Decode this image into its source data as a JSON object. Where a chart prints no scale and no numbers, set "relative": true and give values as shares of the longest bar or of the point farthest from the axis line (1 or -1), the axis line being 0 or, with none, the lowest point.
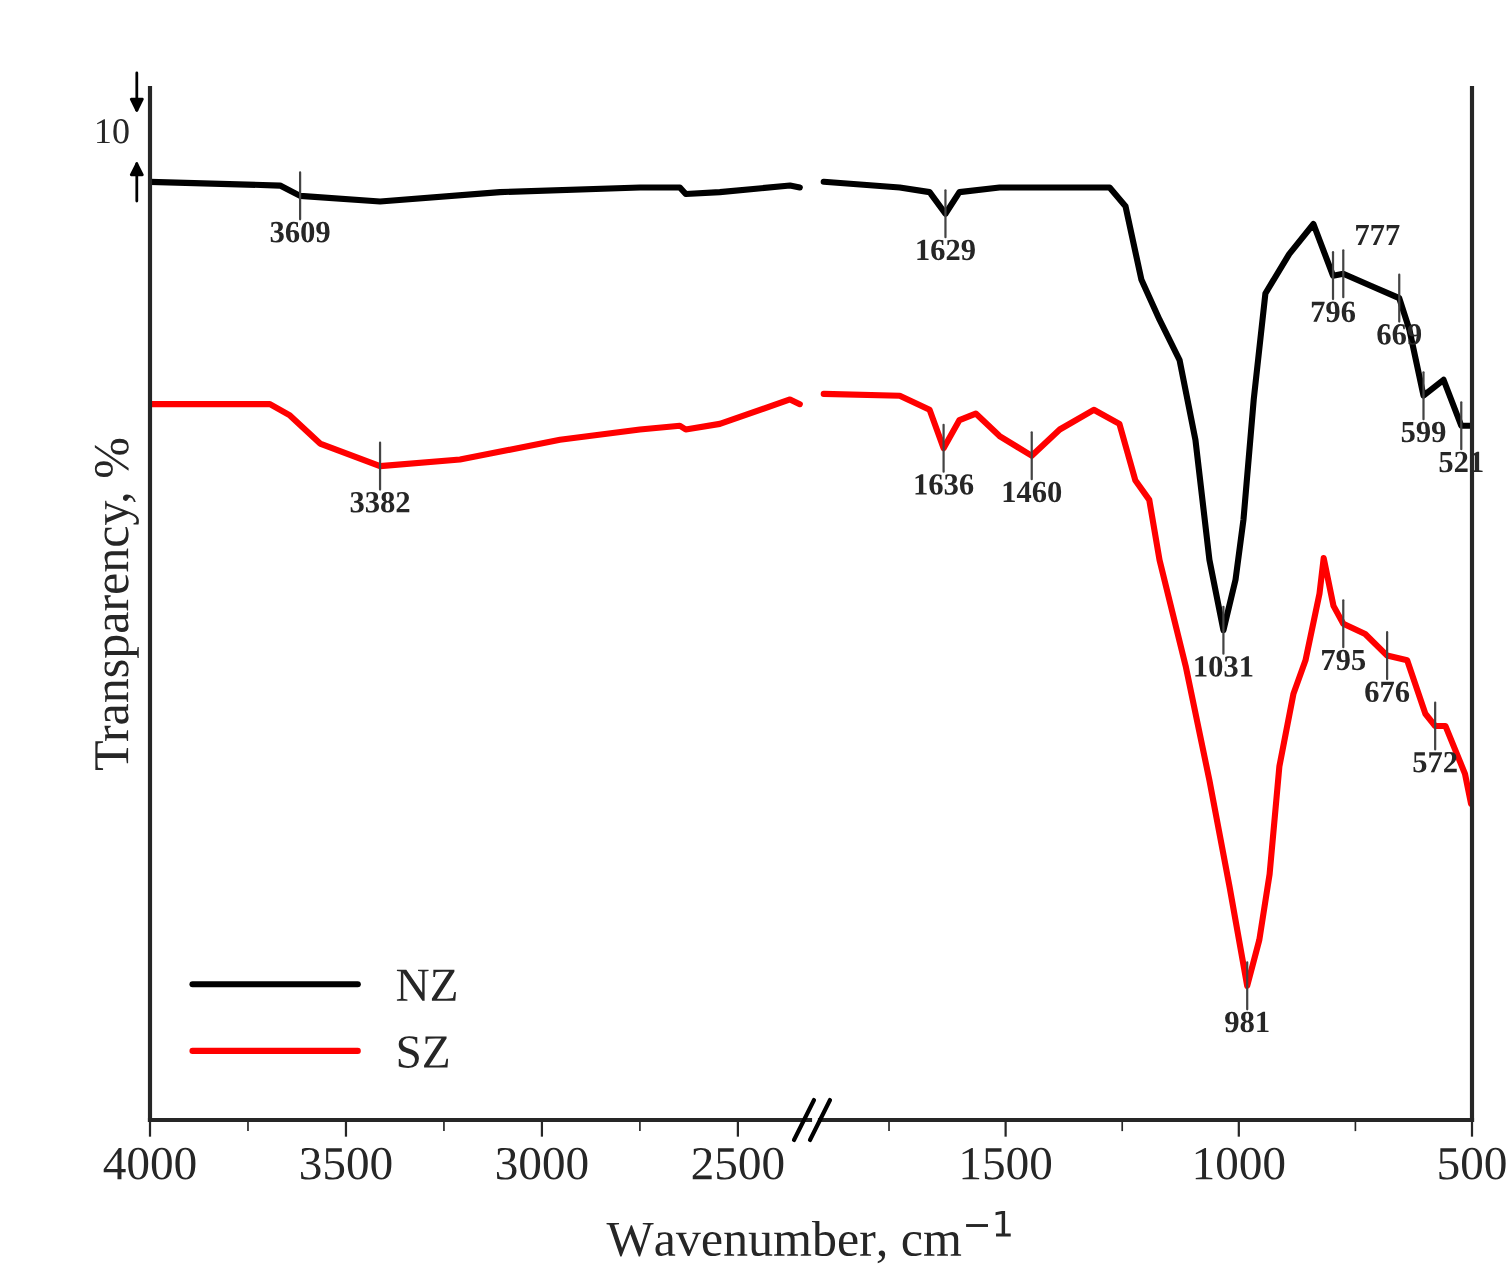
{
  "chart_data": [
    {
      "type": "line",
      "relative": true,
      "ylabel": "Transparency, %",
      "xlabel": "Wavenumber, cm$^{−1}$",
      "xlim": [
        4000,
        2316
      ],
      "xticks": [
        4000,
        3500,
        3000,
        2500
      ],
      "legend": "bottom left",
      "tick_labels": "x",
      "series": [
        {
          "name": "NZ",
          "color": "#000000",
          "x": [
            4000,
            3668,
            3617,
            3413,
            3107,
            2750,
            2648,
            2633,
            2546,
            2367,
            2342
          ],
          "values": [
            1.0,
            0.996,
            0.985,
            0.979,
            0.989,
            0.994,
            0.994,
            0.987,
            0.989,
            0.996,
            0.994
          ]
        },
        {
          "name": "SZ",
          "color": "#ff0000",
          "x": [
            4000,
            3694,
            3643,
            3566,
            3413,
            3209,
            2954,
            2750,
            2648,
            2633,
            2546,
            2367,
            2342
          ],
          "values": [
            0.763,
            0.763,
            0.751,
            0.721,
            0.697,
            0.704,
            0.725,
            0.736,
            0.74,
            0.736,
            0.742,
            0.768,
            0.763
          ]
        }
      ],
      "annotations": [
        "10",
        {
          "text": "3609",
          "x": 3617,
          "y": 0.985
        },
        {
          "text": "3382",
          "x": 3413,
          "y": 0.697
        }
      ]
    },
    {
      "type": "line",
      "relative": true,
      "xlim": [
        1898,
        500
      ],
      "xticks": [
        1500,
        1000,
        500
      ],
      "tick_labels": "x",
      "series": [
        {
          "color": "#000000",
          "x": [
            1890,
            1727,
            1663,
            1629,
            1599,
            1513,
            1277,
            1243,
            1209,
            1170,
            1127,
            1093,
            1063,
            1033,
            1007,
            990,
            968,
            943,
            892,
            840,
            798,
            776,
            716,
            656,
            634,
            604,
            561,
            523,
            502
          ],
          "values": [
            1.0,
            0.994,
            0.989,
            0.966,
            0.989,
            0.994,
            0.994,
            0.974,
            0.896,
            0.853,
            0.81,
            0.725,
            0.597,
            0.522,
            0.576,
            0.64,
            0.768,
            0.881,
            0.923,
            0.955,
            0.9,
            0.902,
            0.889,
            0.876,
            0.842,
            0.772,
            0.789,
            0.74,
            0.74
          ]
        },
        {
          "color": "#ff0000",
          "x": [
            1890,
            1727,
            1663,
            1633,
            1599,
            1564,
            1513,
            1444,
            1384,
            1311,
            1256,
            1222,
            1192,
            1170,
            1114,
            1063,
            1020,
            982,
            956,
            934,
            913,
            883,
            857,
            827,
            818,
            797,
            776,
            729,
            682,
            639,
            600,
            579,
            557,
            515,
            502
          ],
          "values": [
            0.774,
            0.772,
            0.757,
            0.716,
            0.746,
            0.753,
            0.729,
            0.708,
            0.736,
            0.757,
            0.742,
            0.682,
            0.661,
            0.597,
            0.484,
            0.362,
            0.249,
            0.143,
            0.192,
            0.262,
            0.377,
            0.454,
            0.49,
            0.561,
            0.599,
            0.548,
            0.529,
            0.518,
            0.495,
            0.49,
            0.433,
            0.42,
            0.42,
            0.369,
            0.337
          ]
        }
      ],
      "annotations": [
        {
          "text": "1629",
          "x": 1629,
          "y": 0.966
        },
        {
          "text": "796",
          "x": 798,
          "y": 0.9
        },
        {
          "text": "777",
          "x": 776,
          "y": 0.902
        },
        {
          "text": "669",
          "x": 656,
          "y": 0.876
        },
        {
          "text": "599",
          "x": 604,
          "y": 0.772
        },
        {
          "text": "521",
          "x": 523,
          "y": 0.74
        },
        {
          "text": "1636",
          "x": 1633,
          "y": 0.716
        },
        {
          "text": "1460",
          "x": 1444,
          "y": 0.708
        },
        {
          "text": "1031",
          "x": 1033,
          "y": 0.522
        },
        {
          "text": "981",
          "x": 982,
          "y": 0.143
        },
        {
          "text": "795",
          "x": 776,
          "y": 0.529
        },
        {
          "text": "676",
          "x": 682,
          "y": 0.495
        },
        {
          "text": "572",
          "x": 579,
          "y": 0.42
        }
      ]
    }
  ]
}
